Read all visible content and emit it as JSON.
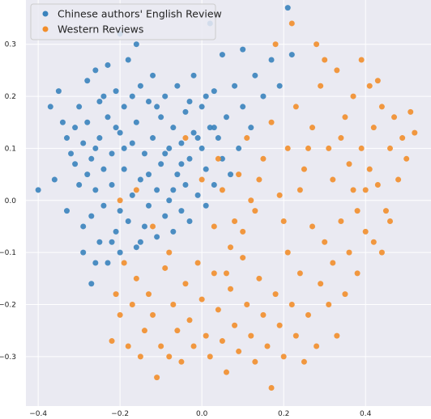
{
  "chart_data": {
    "type": "scatter",
    "title": "",
    "xlabel": "",
    "ylabel": "",
    "xlim": [
      -0.43,
      0.56
    ],
    "ylim": [
      -0.395,
      0.385
    ],
    "xticks": [
      -0.4,
      -0.2,
      0.0,
      0.2,
      0.4
    ],
    "yticks": [
      -0.3,
      -0.2,
      -0.1,
      0.0,
      0.1,
      0.2,
      0.3
    ],
    "xtick_labels": [
      "−0.4",
      "−0.2",
      "0.0",
      "0.2",
      "0.4"
    ],
    "ytick_labels": [
      "−0.3",
      "−0.2",
      "−0.1",
      "0.0",
      "0.1",
      "0.2",
      "0.3"
    ],
    "grid": true,
    "background": "#eaeaf2",
    "legend_position": "top-left",
    "series": [
      {
        "name": "Chinese authors' English Review",
        "color": "#3a83bd",
        "points": [
          [
            -0.4,
            0.02
          ],
          [
            -0.37,
            0.18
          ],
          [
            -0.35,
            0.21
          ],
          [
            -0.34,
            0.15
          ],
          [
            -0.33,
            0.12
          ],
          [
            -0.32,
            0.09
          ],
          [
            -0.31,
            0.07
          ],
          [
            -0.3,
            0.03
          ],
          [
            -0.3,
            0.18
          ],
          [
            -0.29,
            -0.05
          ],
          [
            -0.29,
            -0.1
          ],
          [
            -0.28,
            0.05
          ],
          [
            -0.28,
            0.15
          ],
          [
            -0.28,
            0.23
          ],
          [
            -0.27,
            -0.03
          ],
          [
            -0.27,
            -0.16
          ],
          [
            -0.26,
            0.1
          ],
          [
            -0.26,
            0.02
          ],
          [
            -0.26,
            0.25
          ],
          [
            -0.25,
            -0.08
          ],
          [
            -0.25,
            0.12
          ],
          [
            -0.25,
            0.19
          ],
          [
            -0.24,
            0.06
          ],
          [
            -0.24,
            -0.01
          ],
          [
            -0.23,
            -0.12
          ],
          [
            -0.23,
            0.16
          ],
          [
            -0.23,
            0.26
          ],
          [
            -0.22,
            0.03
          ],
          [
            -0.22,
            0.09
          ],
          [
            -0.21,
            -0.06
          ],
          [
            -0.21,
            0.21
          ],
          [
            -0.2,
            0.13
          ],
          [
            -0.2,
            -0.02
          ],
          [
            -0.2,
            -0.1
          ],
          [
            -0.19,
            0.06
          ],
          [
            -0.19,
            0.18
          ],
          [
            -0.18,
            0.27
          ],
          [
            -0.18,
            -0.04
          ],
          [
            -0.17,
            0.11
          ],
          [
            -0.17,
            0.01
          ],
          [
            -0.16,
            -0.09
          ],
          [
            -0.16,
            0.15
          ],
          [
            -0.15,
            0.22
          ],
          [
            -0.15,
            0.04
          ],
          [
            -0.14,
            -0.05
          ],
          [
            -0.14,
            0.09
          ],
          [
            -0.13,
            0.19
          ],
          [
            -0.13,
            -0.01
          ],
          [
            -0.12,
            0.12
          ],
          [
            -0.12,
            0.24
          ],
          [
            -0.11,
            0.02
          ],
          [
            -0.11,
            -0.07
          ],
          [
            -0.1,
            0.16
          ],
          [
            -0.1,
            0.07
          ],
          [
            -0.09,
            -0.03
          ],
          [
            -0.09,
            0.2
          ],
          [
            -0.08,
            0.1
          ],
          [
            -0.08,
            0.0
          ],
          [
            -0.07,
            0.14
          ],
          [
            -0.07,
            -0.06
          ],
          [
            -0.06,
            0.05
          ],
          [
            -0.06,
            0.22
          ],
          [
            -0.05,
            0.11
          ],
          [
            -0.05,
            -0.02
          ],
          [
            -0.04,
            0.17
          ],
          [
            -0.04,
            0.03
          ],
          [
            -0.03,
            0.08
          ],
          [
            -0.03,
            -0.04
          ],
          [
            -0.02,
            0.13
          ],
          [
            -0.02,
            0.24
          ],
          [
            -0.01,
            0.01
          ],
          [
            0.0,
            0.1
          ],
          [
            0.0,
            0.18
          ],
          [
            0.01,
            -0.01
          ],
          [
            0.01,
            0.06
          ],
          [
            0.02,
            0.14
          ],
          [
            0.02,
            0.34
          ],
          [
            0.03,
            0.03
          ],
          [
            0.03,
            0.21
          ],
          [
            0.04,
            0.12
          ],
          [
            0.05,
            0.08
          ],
          [
            0.05,
            0.28
          ],
          [
            0.06,
            0.16
          ],
          [
            0.07,
            0.05
          ],
          [
            0.08,
            0.22
          ],
          [
            0.09,
            0.1
          ],
          [
            0.1,
            0.18
          ],
          [
            0.1,
            0.29
          ],
          [
            0.12,
            0.14
          ],
          [
            0.13,
            0.24
          ],
          [
            0.15,
            0.2
          ],
          [
            0.17,
            0.27
          ],
          [
            0.19,
            0.22
          ],
          [
            0.21,
            0.37
          ],
          [
            0.22,
            0.28
          ],
          [
            -0.36,
            0.04
          ],
          [
            -0.33,
            -0.02
          ],
          [
            -0.31,
            0.14
          ],
          [
            -0.29,
            0.11
          ],
          [
            -0.27,
            0.08
          ],
          [
            -0.26,
            -0.12
          ],
          [
            -0.24,
            0.2
          ],
          [
            -0.22,
            -0.08
          ],
          [
            -0.21,
            0.14
          ],
          [
            -0.19,
            0.1
          ],
          [
            -0.17,
            0.2
          ],
          [
            -0.15,
            -0.08
          ],
          [
            -0.13,
            0.05
          ],
          [
            -0.11,
            0.18
          ],
          [
            -0.09,
            0.09
          ],
          [
            -0.07,
            0.02
          ],
          [
            -0.05,
            0.07
          ],
          [
            -0.03,
            0.19
          ],
          [
            -0.01,
            0.12
          ],
          [
            0.01,
            0.2
          ],
          [
            0.03,
            0.14
          ],
          [
            -0.16,
            0.3
          ],
          [
            -0.2,
            0.32
          ]
        ]
      },
      {
        "name": "Western Reviews",
        "color": "#f28e2b",
        "points": [
          [
            -0.22,
            -0.27
          ],
          [
            -0.21,
            -0.18
          ],
          [
            -0.2,
            -0.22
          ],
          [
            -0.19,
            -0.12
          ],
          [
            -0.18,
            -0.28
          ],
          [
            -0.17,
            -0.2
          ],
          [
            -0.16,
            -0.15
          ],
          [
            -0.15,
            -0.3
          ],
          [
            -0.14,
            -0.25
          ],
          [
            -0.13,
            -0.18
          ],
          [
            -0.12,
            -0.22
          ],
          [
            -0.11,
            -0.34
          ],
          [
            -0.1,
            -0.28
          ],
          [
            -0.09,
            -0.13
          ],
          [
            -0.08,
            -0.3
          ],
          [
            -0.07,
            -0.2
          ],
          [
            -0.06,
            -0.25
          ],
          [
            -0.05,
            -0.31
          ],
          [
            -0.04,
            -0.16
          ],
          [
            -0.03,
            -0.23
          ],
          [
            -0.02,
            -0.28
          ],
          [
            -0.01,
            -0.12
          ],
          [
            0.0,
            -0.19
          ],
          [
            0.01,
            -0.26
          ],
          [
            0.02,
            -0.3
          ],
          [
            0.03,
            -0.14
          ],
          [
            0.04,
            -0.21
          ],
          [
            0.05,
            -0.27
          ],
          [
            0.06,
            -0.33
          ],
          [
            0.07,
            -0.17
          ],
          [
            0.08,
            -0.24
          ],
          [
            0.09,
            -0.29
          ],
          [
            0.1,
            -0.11
          ],
          [
            0.11,
            -0.2
          ],
          [
            0.12,
            -0.26
          ],
          [
            0.13,
            -0.31
          ],
          [
            0.14,
            -0.15
          ],
          [
            0.15,
            -0.22
          ],
          [
            0.16,
            -0.28
          ],
          [
            0.17,
            -0.36
          ],
          [
            0.18,
            -0.18
          ],
          [
            0.19,
            -0.24
          ],
          [
            0.2,
            -0.3
          ],
          [
            0.21,
            -0.1
          ],
          [
            0.22,
            -0.2
          ],
          [
            0.23,
            -0.26
          ],
          [
            0.24,
            -0.14
          ],
          [
            0.25,
            -0.31
          ],
          [
            0.26,
            -0.22
          ],
          [
            0.27,
            -0.05
          ],
          [
            0.28,
            -0.28
          ],
          [
            0.29,
            -0.16
          ],
          [
            0.3,
            -0.08
          ],
          [
            0.31,
            -0.2
          ],
          [
            0.32,
            -0.12
          ],
          [
            0.33,
            -0.26
          ],
          [
            0.34,
            -0.04
          ],
          [
            0.35,
            -0.18
          ],
          [
            0.36,
            -0.1
          ],
          [
            0.37,
            0.02
          ],
          [
            0.38,
            -0.14
          ],
          [
            0.39,
            0.1
          ],
          [
            0.4,
            -0.06
          ],
          [
            0.41,
            0.06
          ],
          [
            0.42,
            0.14
          ],
          [
            0.43,
            0.03
          ],
          [
            0.44,
            0.18
          ],
          [
            0.45,
            -0.02
          ],
          [
            0.46,
            0.1
          ],
          [
            0.47,
            0.16
          ],
          [
            0.48,
            0.04
          ],
          [
            0.49,
            0.12
          ],
          [
            0.5,
            0.08
          ],
          [
            0.51,
            0.17
          ],
          [
            0.52,
            0.13
          ],
          [
            0.03,
            -0.05
          ],
          [
            0.05,
            0.02
          ],
          [
            0.07,
            -0.09
          ],
          [
            0.09,
            0.05
          ],
          [
            0.11,
            0.12
          ],
          [
            0.13,
            -0.02
          ],
          [
            0.15,
            0.08
          ],
          [
            0.17,
            0.15
          ],
          [
            0.19,
            0.01
          ],
          [
            0.21,
            0.1
          ],
          [
            0.23,
            0.18
          ],
          [
            0.25,
            0.06
          ],
          [
            0.27,
            0.14
          ],
          [
            0.29,
            0.22
          ],
          [
            0.31,
            0.1
          ],
          [
            0.33,
            0.25
          ],
          [
            0.35,
            0.16
          ],
          [
            0.37,
            0.2
          ],
          [
            0.39,
            0.27
          ],
          [
            0.41,
            0.22
          ],
          [
            0.43,
            0.23
          ],
          [
            0.28,
            0.3
          ],
          [
            0.3,
            0.27
          ],
          [
            0.22,
            0.34
          ],
          [
            0.18,
            0.3
          ],
          [
            0.12,
            0.0
          ],
          [
            0.08,
            -0.04
          ],
          [
            0.04,
            0.08
          ],
          [
            0.0,
            0.04
          ],
          [
            -0.04,
            0.12
          ],
          [
            -0.08,
            -0.1
          ],
          [
            -0.12,
            -0.05
          ],
          [
            -0.16,
            0.02
          ],
          [
            -0.2,
            0.0
          ],
          [
            0.06,
            -0.14
          ],
          [
            0.1,
            -0.06
          ],
          [
            0.14,
            0.04
          ],
          [
            0.2,
            -0.04
          ],
          [
            0.24,
            0.02
          ],
          [
            0.26,
            0.1
          ],
          [
            0.32,
            0.04
          ],
          [
            0.34,
            0.12
          ],
          [
            0.36,
            0.07
          ],
          [
            0.38,
            -0.02
          ],
          [
            0.4,
            0.02
          ],
          [
            0.42,
            -0.08
          ],
          [
            0.44,
            -0.1
          ],
          [
            0.46,
            -0.04
          ]
        ]
      }
    ]
  }
}
